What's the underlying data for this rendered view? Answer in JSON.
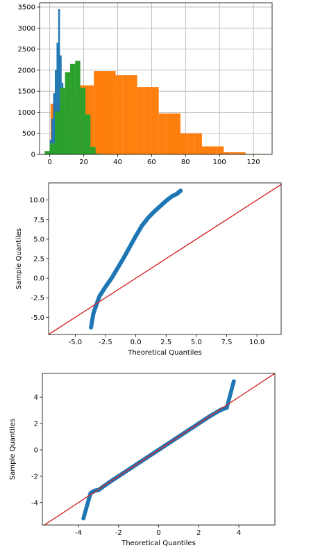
{
  "chart_data": [
    {
      "type": "bar",
      "subtype": "histogram",
      "grid": true,
      "xlim": [
        -6,
        131
      ],
      "ylim": [
        0,
        3600
      ],
      "xticks": [
        0,
        20,
        40,
        60,
        80,
        100,
        120
      ],
      "yticks": [
        0,
        500,
        1000,
        1500,
        2000,
        2500,
        3000,
        3500
      ],
      "colors": [
        "#ff7f0e",
        "#1f77b4",
        "#2ca02c"
      ],
      "series": [
        {
          "color": "#ff7f0e",
          "bin_edges": [
            0.5,
            4.7,
            9.0,
            13.2,
            17.5,
            21.8,
            26.0,
            30.2,
            34.5,
            38.8,
            43.0,
            47.2,
            51.5,
            55.7,
            60.0,
            64.2,
            68.5,
            72.7,
            77.0,
            81.2,
            85.5,
            89.7,
            94.0,
            98.2,
            102.5,
            106.8,
            111.0,
            115.3,
            119.5,
            123.8,
            128.0
          ],
          "values": [
            1200,
            1200,
            1460,
            1460,
            1640,
            1640,
            1980,
            1980,
            1980,
            1880,
            1880,
            1880,
            1600,
            1600,
            1600,
            970,
            970,
            970,
            500,
            500,
            500,
            190,
            190,
            190,
            50,
            50,
            50,
            10,
            10,
            10
          ]
        },
        {
          "color": "#1f77b4",
          "bin_edges": [
            0,
            1,
            2,
            3,
            4,
            5,
            6,
            7,
            8,
            9,
            10
          ],
          "values": [
            350,
            850,
            1450,
            2000,
            2650,
            3450,
            2350,
            1700,
            1000,
            450
          ]
        },
        {
          "color": "#2ca02c",
          "bin_edges": [
            -3,
            0,
            3,
            6,
            9,
            12,
            15,
            18,
            21,
            24,
            27,
            30
          ],
          "values": [
            80,
            260,
            1020,
            1580,
            1950,
            2150,
            2220,
            1580,
            950,
            180,
            20
          ]
        }
      ]
    },
    {
      "type": "scatter",
      "subtype": "qq-plot",
      "xlabel": "Theoretical Quantiles",
      "ylabel": "Sample Quantiles",
      "xlim": [
        -7.2,
        12
      ],
      "ylim": [
        -7.2,
        12.2
      ],
      "xticks": [
        -5.0,
        -2.5,
        0.0,
        2.5,
        5.0,
        7.5,
        10.0
      ],
      "yticks": [
        -5.0,
        -2.5,
        0.0,
        2.5,
        5.0,
        7.5,
        10.0
      ],
      "tick_format": "1f",
      "point_color": "#1f77b4",
      "reference_line": {
        "slope": 1,
        "intercept": 0,
        "color": "#d62728"
      },
      "points": [
        [
          -3.7,
          -6.3
        ],
        [
          -3.5,
          -4.5
        ],
        [
          -3.3,
          -3.6
        ],
        [
          -3.0,
          -2.3
        ],
        [
          -2.5,
          -1.1
        ],
        [
          -2.0,
          0.0
        ],
        [
          -1.5,
          1.3
        ],
        [
          -1.0,
          2.6
        ],
        [
          -0.5,
          4.0
        ],
        [
          0.0,
          5.4
        ],
        [
          0.5,
          6.7
        ],
        [
          1.0,
          7.7
        ],
        [
          1.5,
          8.5
        ],
        [
          2.0,
          9.2
        ],
        [
          2.5,
          9.9
        ],
        [
          3.0,
          10.5
        ],
        [
          3.4,
          10.8
        ],
        [
          3.7,
          11.2
        ]
      ]
    },
    {
      "type": "scatter",
      "subtype": "qq-plot",
      "xlabel": "Theoretical Quantiles",
      "ylabel": "Sample Quantiles",
      "xlim": [
        -5.8,
        5.8
      ],
      "ylim": [
        -5.7,
        5.8
      ],
      "xticks": [
        -4,
        -2,
        0,
        2,
        4
      ],
      "yticks": [
        -4,
        -2,
        0,
        2,
        4
      ],
      "tick_format": "0f",
      "point_color": "#1f77b4",
      "reference_line": {
        "slope": 1,
        "intercept": 0,
        "color": "#d62728"
      },
      "points": [
        [
          -3.75,
          -5.2
        ],
        [
          -3.4,
          -3.3
        ],
        [
          -3.2,
          -3.1
        ],
        [
          -3.0,
          -3.05
        ],
        [
          -2.5,
          -2.5
        ],
        [
          -2.0,
          -2.0
        ],
        [
          -1.5,
          -1.5
        ],
        [
          -1.0,
          -1.0
        ],
        [
          -0.5,
          -0.5
        ],
        [
          0.0,
          0.0
        ],
        [
          0.5,
          0.5
        ],
        [
          1.0,
          1.0
        ],
        [
          1.5,
          1.5
        ],
        [
          2.0,
          2.0
        ],
        [
          2.5,
          2.5
        ],
        [
          3.0,
          2.95
        ],
        [
          3.2,
          3.1
        ],
        [
          3.4,
          3.2
        ],
        [
          3.75,
          5.2
        ]
      ]
    }
  ]
}
